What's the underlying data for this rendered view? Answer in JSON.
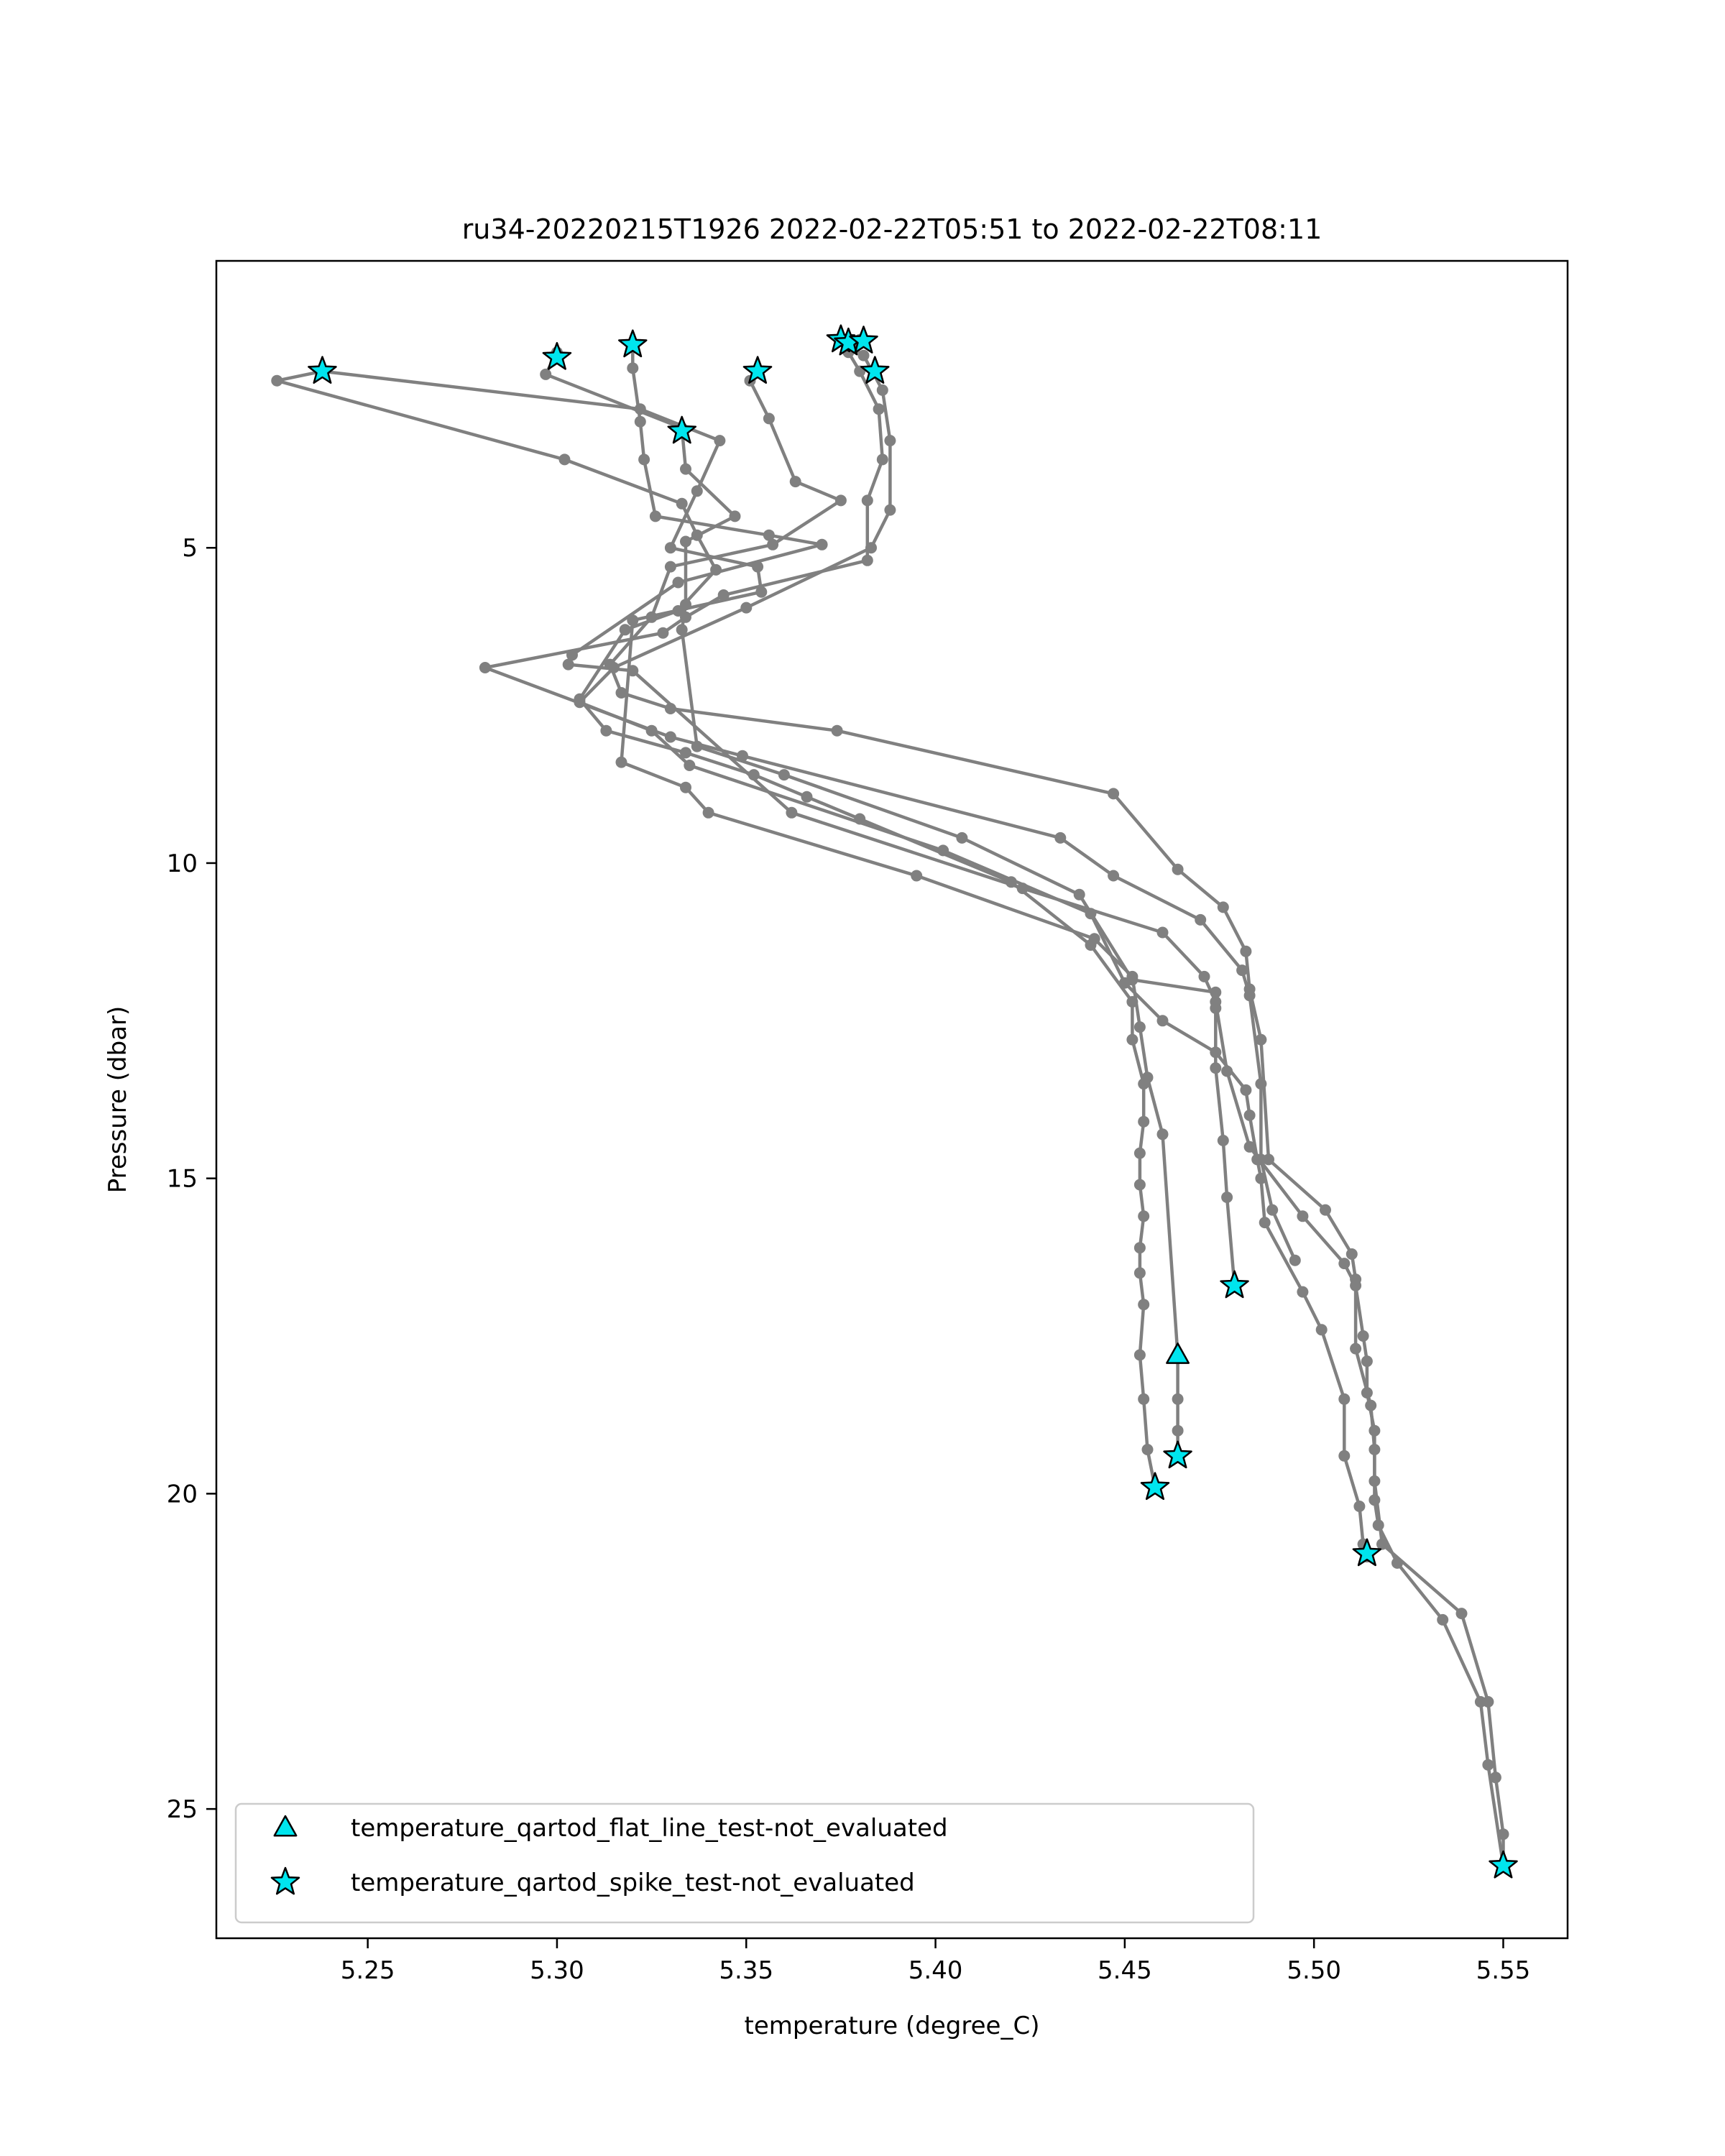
{
  "chart_data": {
    "type": "scatter",
    "title": "ru34-20220215T1926 2022-02-22T05:51 to 2022-02-22T08:11",
    "xlabel": "temperature (degree_C)",
    "ylabel": "Pressure (dbar)",
    "xlim": [
      5.21,
      5.567
    ],
    "ylim": [
      27.05,
      0.45
    ],
    "y_inverted": true,
    "grid": false,
    "legend_placement": "lower-left",
    "x_ticks": [
      5.25,
      5.3,
      5.35,
      5.4,
      5.45,
      5.5,
      5.55
    ],
    "x_tick_labels": [
      "5.25",
      "5.30",
      "5.35",
      "5.40",
      "5.45",
      "5.50",
      "5.55"
    ],
    "y_ticks": [
      5,
      10,
      15,
      20,
      25
    ],
    "y_tick_labels": [
      "5",
      "10",
      "15",
      "20",
      "25"
    ],
    "colors": {
      "profile_line": "#808080",
      "profile_point": "#808080",
      "flag_fill": "#00e5ee",
      "flag_edge": "#000000"
    },
    "profiles": [
      {
        "x": [
          5.238,
          5.226,
          5.302,
          5.333,
          5.337,
          5.342,
          5.332,
          5.318,
          5.306,
          5.313,
          5.334,
          5.352,
          5.366,
          5.38,
          5.42,
          5.441,
          5.452,
          5.452,
          5.455,
          5.455,
          5.454,
          5.454,
          5.455,
          5.454,
          5.454,
          5.455,
          5.454,
          5.455,
          5.456,
          5.458
        ],
        "y": [
          2.2,
          2.35,
          3.6,
          4.3,
          4.8,
          5.35,
          6.0,
          6.3,
          7.4,
          7.9,
          8.25,
          8.6,
          8.95,
          9.3,
          10.3,
          11.3,
          12.2,
          12.8,
          13.5,
          14.1,
          14.6,
          15.1,
          15.6,
          16.1,
          16.5,
          17.0,
          17.8,
          18.5,
          19.3,
          19.9
        ]
      },
      {
        "x": [
          5.238,
          5.322,
          5.343,
          5.337,
          5.33,
          5.353,
          5.354,
          5.32,
          5.317,
          5.334,
          5.34,
          5.395,
          5.442,
          5.452,
          5.454,
          5.456,
          5.46,
          5.464,
          5.464,
          5.464,
          5.464
        ],
        "y": [
          2.2,
          2.8,
          3.3,
          4.1,
          5.0,
          5.3,
          5.7,
          6.15,
          8.4,
          8.8,
          9.2,
          10.2,
          11.2,
          11.8,
          12.6,
          13.4,
          14.3,
          17.8,
          18.5,
          19.0,
          19.4
        ]
      },
      {
        "x": [
          5.3,
          5.297,
          5.333,
          5.334,
          5.347,
          5.334,
          5.334,
          5.333,
          5.337,
          5.36,
          5.407,
          5.438,
          5.452,
          5.474,
          5.474,
          5.474,
          5.476,
          5.477,
          5.479
        ],
        "y": [
          1.9,
          2.25,
          3.1,
          3.75,
          4.5,
          4.9,
          5.9,
          6.3,
          8.15,
          8.6,
          9.6,
          10.5,
          11.85,
          12.05,
          12.3,
          13.25,
          14.4,
          15.3,
          16.7
        ]
      },
      {
        "x": [
          5.32,
          5.32,
          5.322,
          5.323,
          5.326,
          5.356,
          5.37,
          5.332,
          5.304,
          5.303,
          5.32,
          5.362,
          5.423,
          5.46,
          5.471,
          5.474,
          5.477,
          5.483,
          5.497,
          5.508,
          5.511,
          5.513,
          5.514,
          5.514,
          5.516,
          5.516,
          5.518,
          5.539,
          5.546,
          5.548,
          5.55,
          5.55
        ],
        "y": [
          1.75,
          2.15,
          3.0,
          3.6,
          4.5,
          4.8,
          4.95,
          5.55,
          6.7,
          6.85,
          6.95,
          9.2,
          10.4,
          11.1,
          11.8,
          12.2,
          13.3,
          14.5,
          15.6,
          16.35,
          16.7,
          17.5,
          17.9,
          18.4,
          19.0,
          19.8,
          20.8,
          21.9,
          23.3,
          24.5,
          25.4,
          25.9
        ]
      },
      {
        "x": [
          5.353,
          5.351,
          5.356,
          5.363,
          5.375,
          5.357,
          5.33,
          5.325,
          5.314,
          5.317,
          5.33,
          5.374,
          5.447,
          5.464,
          5.476,
          5.482,
          5.483,
          5.486,
          5.488,
          5.503,
          5.51,
          5.511,
          5.511,
          5.515,
          5.516,
          5.516,
          5.517,
          5.522,
          5.534,
          5.544,
          5.546,
          5.55
        ],
        "y": [
          2.2,
          2.35,
          2.95,
          3.95,
          4.25,
          4.95,
          5.3,
          6.1,
          6.85,
          7.3,
          7.55,
          7.9,
          8.9,
          10.1,
          10.7,
          11.4,
          12.0,
          12.8,
          14.7,
          15.5,
          16.2,
          16.6,
          17.7,
          18.6,
          19.3,
          20.1,
          20.5,
          21.1,
          22.0,
          23.3,
          24.3,
          25.9
        ]
      },
      {
        "x": [
          5.375,
          5.381,
          5.386,
          5.388,
          5.388,
          5.383,
          5.35,
          5.315,
          5.306,
          5.325,
          5.335,
          5.402,
          5.441,
          5.45,
          5.46,
          5.474,
          5.482,
          5.483,
          5.485,
          5.486,
          5.487,
          5.497,
          5.502,
          5.508,
          5.508,
          5.512,
          5.513,
          5.514
        ],
        "y": [
          1.7,
          1.95,
          2.5,
          3.3,
          4.4,
          5.0,
          5.95,
          6.9,
          7.45,
          7.9,
          8.45,
          9.8,
          10.8,
          11.9,
          12.5,
          13.0,
          13.6,
          14.0,
          14.7,
          15.0,
          15.7,
          16.8,
          17.4,
          18.5,
          19.4,
          20.2,
          20.8,
          21.0
        ]
      },
      {
        "x": [
          5.38,
          5.377,
          5.38,
          5.385,
          5.386,
          5.382,
          5.382,
          5.344,
          5.334,
          5.328,
          5.281,
          5.33,
          5.349,
          5.433,
          5.447,
          5.47,
          5.481,
          5.483,
          5.486,
          5.486,
          5.489,
          5.495
        ],
        "y": [
          1.7,
          1.9,
          2.2,
          2.8,
          3.6,
          4.25,
          5.2,
          5.75,
          6.1,
          6.35,
          6.9,
          8.0,
          8.3,
          9.6,
          10.2,
          10.9,
          11.7,
          12.1,
          13.5,
          14.7,
          15.5,
          16.3
        ]
      }
    ],
    "flags": [
      {
        "name": "temperature_qartod_flat_line_test-not_evaluated",
        "marker": "triangle",
        "x": [
          5.464
        ],
        "y": [
          17.8
        ]
      },
      {
        "name": "temperature_qartod_spike_test-not_evaluated",
        "marker": "star",
        "x": [
          5.238,
          5.3,
          5.32,
          5.353,
          5.333,
          5.375,
          5.377,
          5.381,
          5.384,
          5.479,
          5.464,
          5.458,
          5.514,
          5.55
        ],
        "y": [
          2.2,
          1.98,
          1.78,
          2.2,
          3.15,
          1.7,
          1.75,
          1.72,
          2.2,
          16.7,
          19.4,
          19.9,
          20.95,
          25.9
        ]
      }
    ]
  }
}
